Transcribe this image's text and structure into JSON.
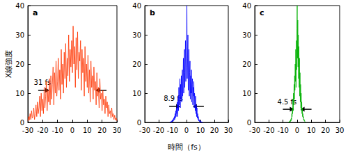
{
  "chart_data": [
    {
      "type": "line",
      "label": "a",
      "ylabel": "X線強度",
      "color": "#ff3300",
      "grid": false,
      "xlim": [
        -30,
        30
      ],
      "xticks": [
        -30,
        -20,
        -10,
        0,
        10,
        20,
        30
      ],
      "ylim": [
        0,
        40
      ],
      "yticks": [
        0,
        10,
        20,
        30,
        40
      ],
      "annotation": {
        "text": "31 fs",
        "x": [
          -15.5,
          15.5
        ],
        "y": 11
      },
      "x": [
        -30,
        -29.5,
        -29,
        -28.5,
        -28,
        -27.5,
        -27,
        -26.5,
        -26,
        -25.5,
        -25,
        -24.5,
        -24,
        -23.5,
        -23,
        -22.5,
        -22,
        -21.5,
        -21,
        -20.5,
        -20,
        -19.5,
        -19,
        -18.5,
        -18,
        -17.5,
        -17,
        -16.5,
        -16,
        -15.5,
        -15,
        -14.5,
        -14,
        -13.5,
        -13,
        -12.5,
        -12,
        -11.5,
        -11,
        -10.5,
        -10,
        -9.5,
        -9,
        -8.5,
        -8,
        -7.5,
        -7,
        -6.5,
        -6,
        -5.5,
        -5,
        -4.5,
        -4,
        -3.5,
        -3,
        -2.5,
        -2,
        -1.5,
        -1,
        -0.5,
        0,
        0.5,
        1,
        1.5,
        2,
        2.5,
        3,
        3.5,
        4,
        4.5,
        5,
        5.5,
        6,
        6.5,
        7,
        7.5,
        8,
        8.5,
        9,
        9.5,
        10,
        10.5,
        11,
        11.5,
        12,
        12.5,
        13,
        13.5,
        14,
        14.5,
        15,
        15.5,
        16,
        16.5,
        17,
        17.5,
        18,
        18.5,
        19,
        19.5,
        20,
        20.5,
        21,
        21.5,
        22,
        22.5,
        23,
        23.5,
        24,
        24.5,
        25,
        25.5,
        26,
        26.5,
        27,
        27.5,
        28,
        28.5,
        29,
        29.5,
        30
      ],
      "values": [
        0.5,
        2,
        0.8,
        3,
        1,
        4,
        1.5,
        2,
        5,
        1,
        3,
        6,
        2,
        7,
        3,
        5,
        9,
        2,
        10,
        4,
        8,
        3,
        12,
        5,
        9,
        14,
        4,
        11,
        7,
        15,
        6,
        16,
        8,
        13,
        19,
        6,
        17,
        10,
        21,
        9,
        14,
        22,
        11,
        18,
        8,
        25,
        13,
        20,
        10,
        24,
        15,
        27,
        12,
        22,
        16,
        30,
        14,
        25,
        19,
        28,
        17,
        33,
        20,
        26,
        12,
        29,
        18,
        31,
        15,
        24,
        21,
        28,
        11,
        25,
        17,
        22,
        9,
        26,
        14,
        20,
        12,
        23,
        10,
        18,
        7,
        21,
        12,
        16,
        8,
        19,
        11,
        14,
        6,
        17,
        9,
        12,
        5,
        15,
        8,
        10,
        4,
        11,
        6,
        8,
        3,
        9,
        5,
        7,
        2,
        6,
        3,
        4,
        1.5,
        5,
        2,
        3,
        1,
        2.5,
        0.8,
        1.5,
        0.5
      ]
    },
    {
      "type": "line",
      "label": "b",
      "xlabel": "時間（fs）",
      "color": "#0000ff",
      "grid": false,
      "xlim": [
        -30,
        30
      ],
      "xticks": [
        -30,
        -20,
        -10,
        0,
        10,
        20,
        30
      ],
      "ylim": [
        0,
        40
      ],
      "yticks": [
        0,
        10,
        20,
        30,
        40
      ],
      "annotation": {
        "text": "8.9 fs",
        "x": [
          -4.45,
          4.45
        ],
        "y": 5.5
      },
      "x": [
        -12,
        -11.75,
        -11.5,
        -11.25,
        -11,
        -10.75,
        -10.5,
        -10.25,
        -10,
        -9.75,
        -9.5,
        -9.25,
        -9,
        -8.75,
        -8.5,
        -8.25,
        -8,
        -7.75,
        -7.5,
        -7.25,
        -7,
        -6.75,
        -6.5,
        -6.25,
        -6,
        -5.75,
        -5.5,
        -5.25,
        -5,
        -4.75,
        -4.5,
        -4.25,
        -4,
        -3.75,
        -3.5,
        -3.25,
        -3,
        -2.75,
        -2.5,
        -2.25,
        -2,
        -1.75,
        -1.5,
        -1.25,
        -1,
        -0.75,
        -0.5,
        -0.25,
        0,
        0.25,
        0.5,
        0.75,
        1,
        1.25,
        1.5,
        1.75,
        2,
        2.25,
        2.5,
        2.75,
        3,
        3.25,
        3.5,
        3.75,
        4,
        4.25,
        4.5,
        4.75,
        5,
        5.25,
        5.5,
        5.75,
        6,
        6.25,
        6.5,
        6.75,
        7,
        7.25,
        7.5,
        7.75,
        8,
        8.25,
        8.5,
        8.75,
        9,
        9.25,
        9.5,
        9.75,
        10,
        10.25,
        10.5,
        10.75,
        11,
        11.25,
        11.5,
        11.75,
        12
      ],
      "values": [
        0,
        0.2,
        0,
        0.3,
        0.1,
        0.5,
        0.2,
        0.8,
        0.3,
        1,
        0.5,
        1.5,
        0.8,
        2,
        1,
        3,
        1.5,
        4,
        2,
        5,
        3,
        7,
        2,
        6,
        9,
        4,
        12,
        6,
        10,
        15,
        5,
        13,
        8,
        16,
        7,
        14,
        18,
        9,
        15,
        22,
        10,
        17,
        25,
        12,
        20,
        28,
        14,
        19,
        26,
        40,
        15,
        22,
        30,
        11,
        19,
        25,
        9,
        17,
        21,
        8,
        16,
        10,
        18,
        7,
        13,
        15,
        6,
        12,
        9,
        14,
        5,
        10,
        8,
        4,
        9,
        3,
        6,
        2,
        5,
        1.5,
        3,
        1,
        2,
        0.5,
        1,
        0.3,
        0.8,
        0.2,
        0.5,
        0.1,
        0.3,
        0,
        0.2,
        0,
        0.1,
        0,
        0
      ]
    },
    {
      "type": "line",
      "label": "c",
      "color": "#00b000",
      "grid": false,
      "xlim": [
        -30,
        30
      ],
      "xticks": [
        -30,
        -20,
        -10,
        0,
        10,
        20,
        30
      ],
      "ylim": [
        0,
        40
      ],
      "yticks": [
        0,
        10,
        20,
        30,
        40
      ],
      "annotation": {
        "text": "4.5 fs",
        "x": [
          -2.25,
          2.25
        ],
        "y": 4.5
      },
      "x": [
        -6,
        -5.8,
        -5.6,
        -5.4,
        -5.2,
        -5,
        -4.8,
        -4.6,
        -4.4,
        -4.2,
        -4,
        -3.8,
        -3.6,
        -3.4,
        -3.2,
        -3,
        -2.8,
        -2.6,
        -2.4,
        -2.2,
        -2,
        -1.8,
        -1.6,
        -1.4,
        -1.2,
        -1,
        -0.8,
        -0.6,
        -0.4,
        -0.2,
        0,
        0.2,
        0.4,
        0.6,
        0.8,
        1,
        1.2,
        1.4,
        1.6,
        1.8,
        2,
        2.2,
        2.4,
        2.6,
        2.8,
        3,
        3.2,
        3.4,
        3.6,
        3.8,
        4,
        4.2,
        4.4,
        4.6,
        4.8,
        5,
        5.2,
        5.4,
        5.6,
        5.8,
        6
      ],
      "values": [
        0,
        0.2,
        0,
        0.4,
        0.1,
        0.6,
        0.3,
        1,
        0.5,
        1.5,
        1,
        3,
        2,
        5,
        3,
        8,
        4,
        10,
        6,
        13,
        8,
        16,
        11,
        20,
        14,
        25,
        12,
        28,
        18,
        32,
        40,
        22,
        35,
        19,
        30,
        15,
        26,
        12,
        22,
        9,
        17,
        7,
        13,
        5,
        10,
        4,
        7,
        3,
        5,
        2,
        3,
        1.5,
        2,
        0.8,
        1.2,
        0.5,
        0.7,
        0.2,
        0.3,
        0.1,
        0
      ]
    }
  ]
}
